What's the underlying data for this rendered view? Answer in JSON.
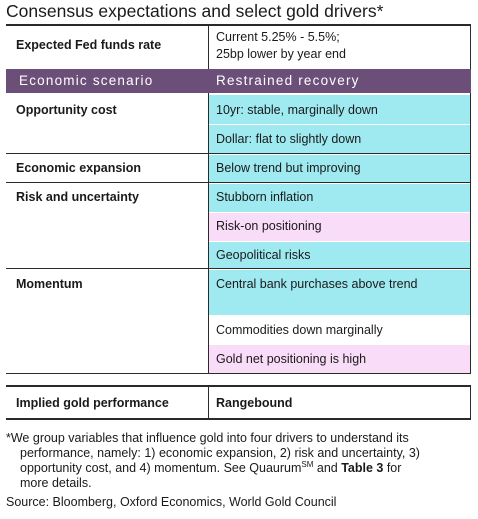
{
  "title": "Consensus expectations and select gold drivers*",
  "fed": {
    "label": "Expected Fed funds rate",
    "value_line1": "Current 5.25% - 5.5%;",
    "value_line2": "25bp lower by year end"
  },
  "scenario": {
    "left": "Economic scenario",
    "right": "Restrained recovery",
    "color": "#6b4f78"
  },
  "drivers": [
    {
      "label": "Opportunity cost",
      "items": [
        {
          "text": "10yr: stable, marginally down",
          "tone": "cyan"
        },
        {
          "text": "Dollar: flat to slightly down",
          "tone": "cyan"
        }
      ]
    },
    {
      "label": "Economic expansion",
      "items": [
        {
          "text": "Below trend but improving",
          "tone": "cyan"
        }
      ]
    },
    {
      "label": "Risk and uncertainty",
      "items": [
        {
          "text": "Stubborn inflation",
          "tone": "cyan"
        },
        {
          "text": "Risk-on positioning",
          "tone": "pink"
        },
        {
          "text": "Geopolitical risks",
          "tone": "cyan"
        }
      ]
    },
    {
      "label": "Momentum",
      "items": [
        {
          "text": "Central bank purchases above trend",
          "tone": "cyan"
        },
        {
          "text": "Commodities down marginally",
          "tone": "white"
        },
        {
          "text": "Gold net positioning is high",
          "tone": "pink"
        }
      ]
    }
  ],
  "colors": {
    "cyan": "#9eeaf0",
    "pink": "#f9dcf7"
  },
  "implied": {
    "label": "Implied gold performance",
    "value": "Rangebound"
  },
  "footnote": {
    "line1": "*We group variables that influence gold into four drivers to understand its",
    "line2": "performance, namely: 1) economic expansion, 2) risk and uncertainty, 3)",
    "line3_pre": "opportunity cost, and 4) momentum. See Quaurum",
    "line3_sup": "SM",
    "line3_mid": " and ",
    "line3_bold": "Table 3",
    "line3_post": " for",
    "line4": "more details."
  },
  "source": "Source: Bloomberg, Oxford Economics, World Gold Council"
}
